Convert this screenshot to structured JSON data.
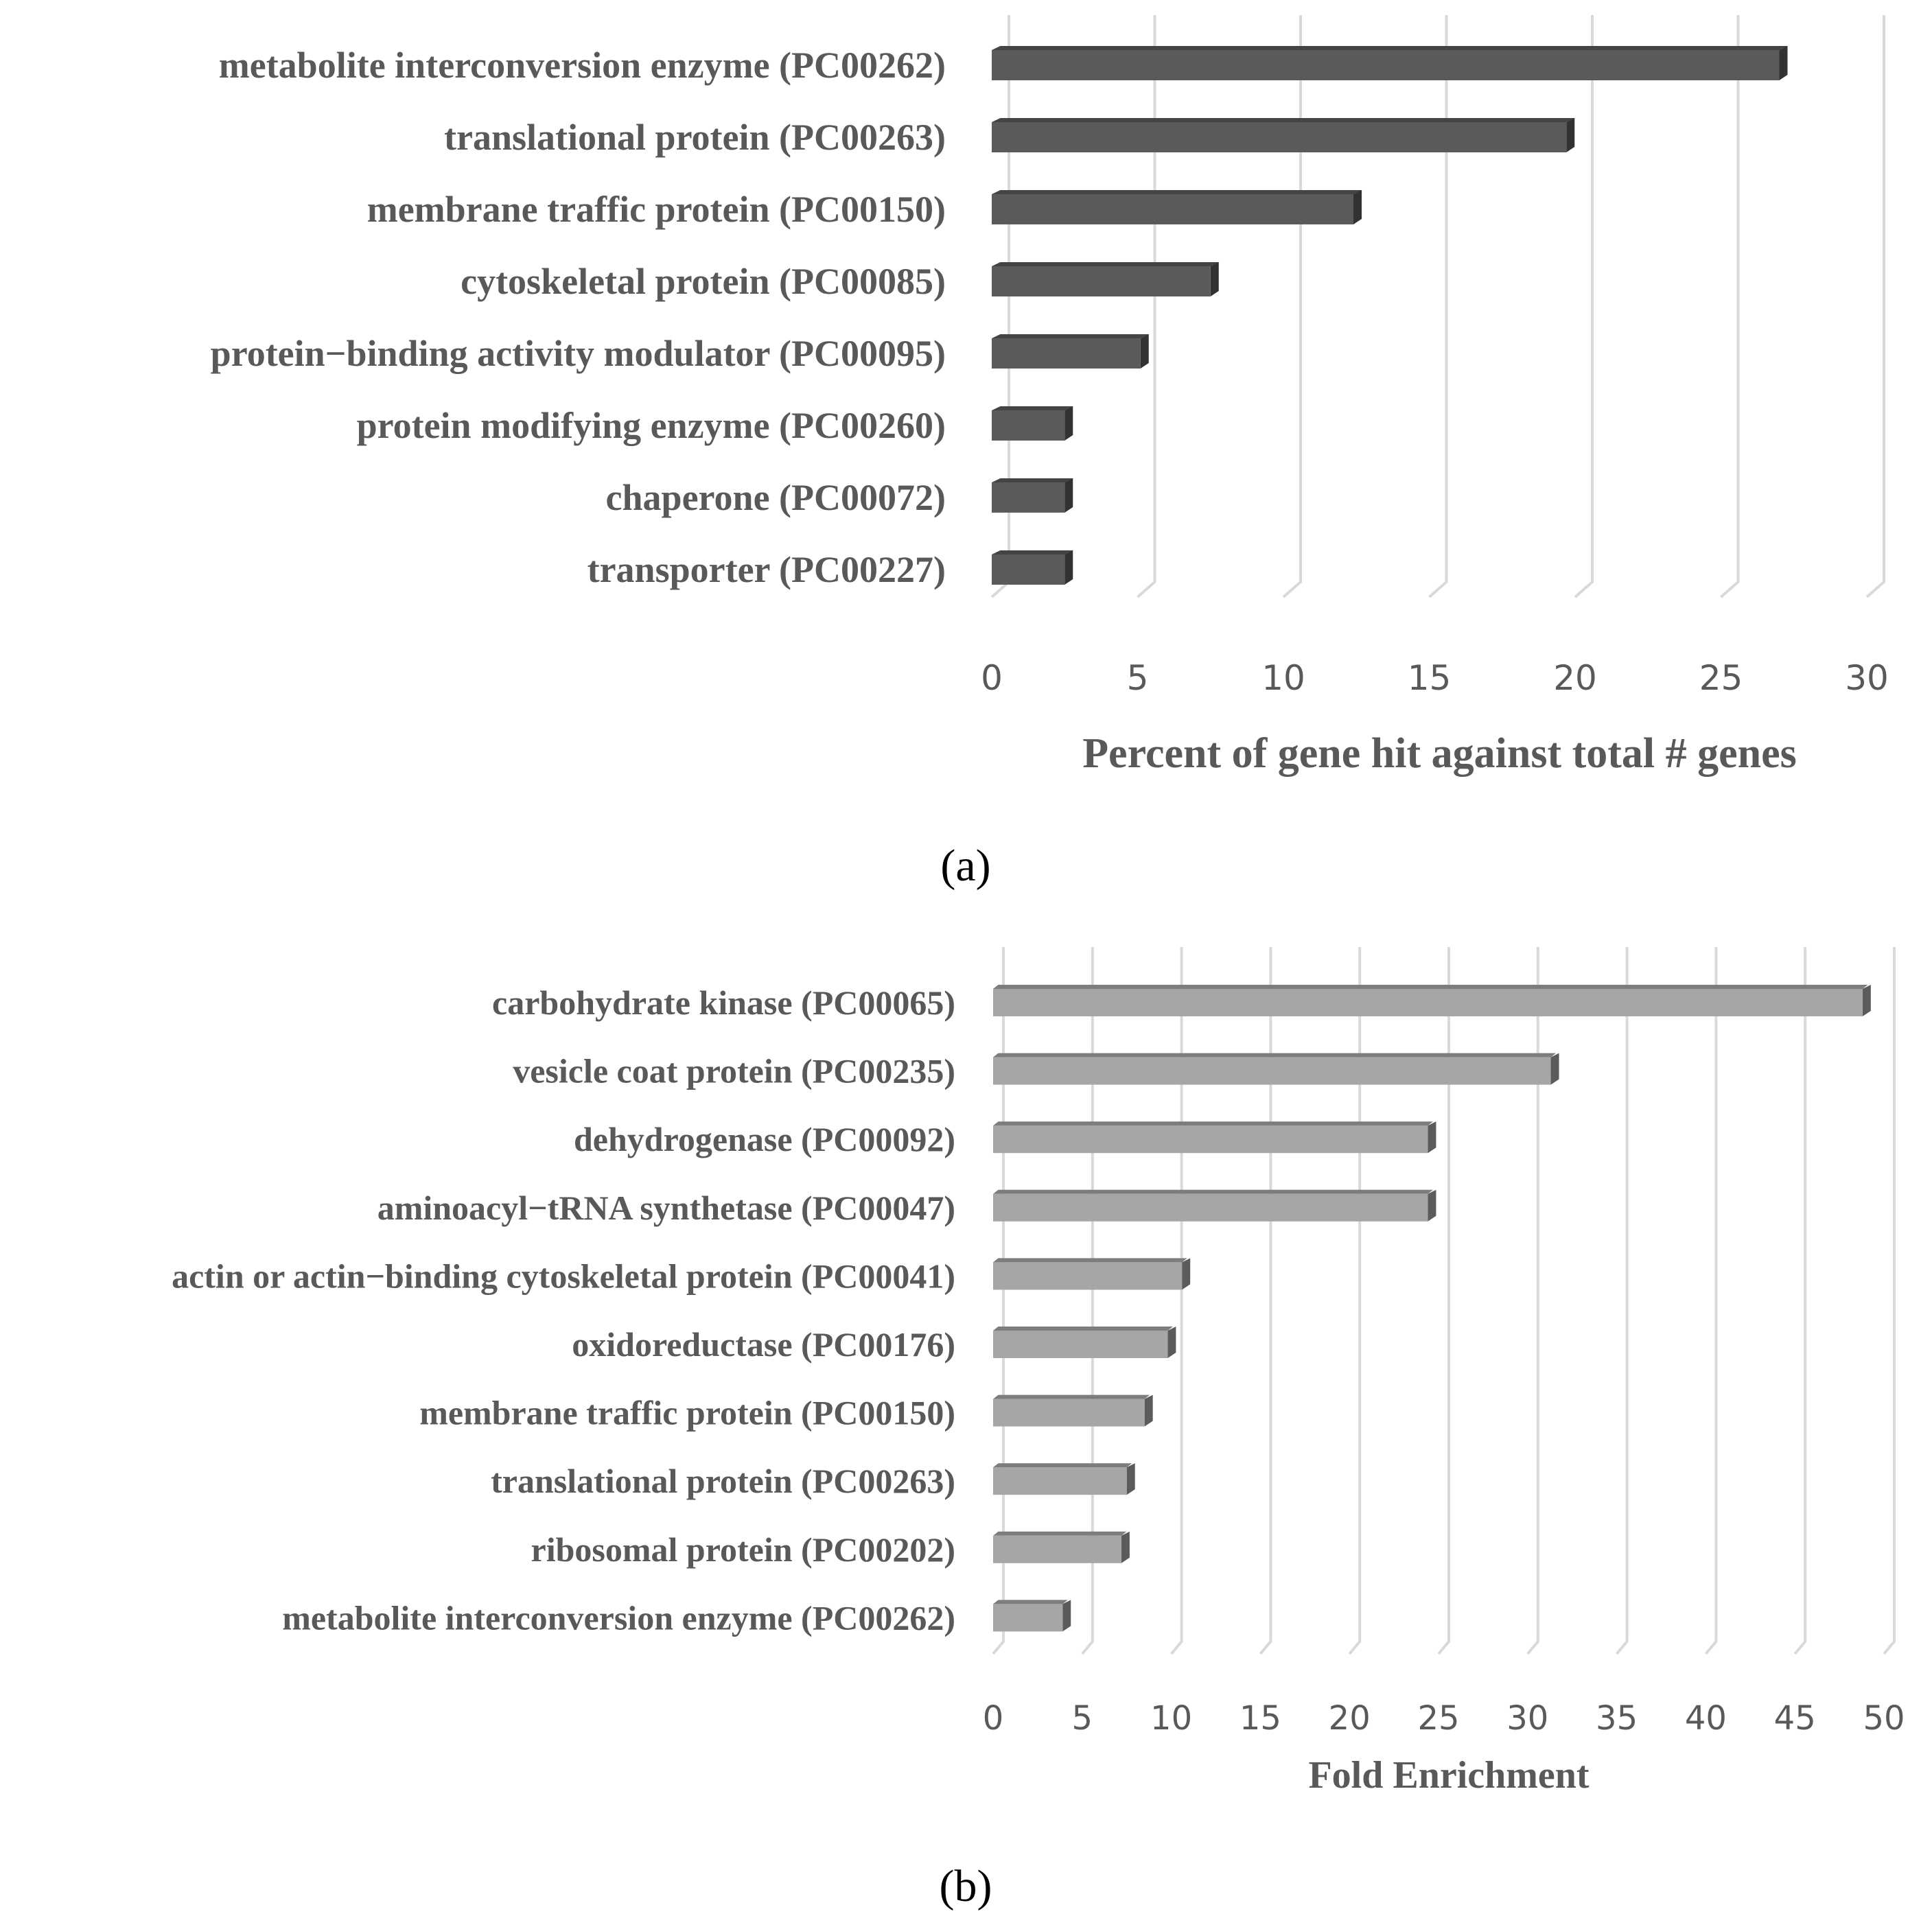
{
  "chart_data": [
    {
      "type": "bar",
      "orientation": "horizontal",
      "panel": "(a)",
      "categories": [
        "metabolite interconversion enzyme (PC00262)",
        "translational protein (PC00263)",
        "membrane traffic protein (PC00150)",
        "cytoskeletal protein (PC00085)",
        "protein−binding activity modulator (PC00095)",
        "protein modifying enzyme (PC00260)",
        "chaperone (PC00072)",
        "transporter (PC00227)"
      ],
      "values": [
        27,
        19.7,
        12.4,
        7.5,
        5.1,
        2.5,
        2.5,
        2.5
      ],
      "xlabel": "Percent of gene hit against total # genes",
      "xlim": [
        0,
        30
      ],
      "xticks": [
        "0",
        "5",
        "10",
        "15",
        "20",
        "25",
        "30"
      ],
      "grid": true,
      "color": "#5a5a5a"
    },
    {
      "type": "bar",
      "orientation": "horizontal",
      "panel": "(b)",
      "categories": [
        "carbohydrate kinase (PC00065)",
        "vesicle coat protein (PC00235)",
        "dehydrogenase (PC00092)",
        "aminoacyl−tRNA synthetase (PC00047)",
        "actin or actin−binding cytoskeletal protein (PC00041)",
        "oxidoreductase (PC00176)",
        "membrane traffic protein (PC00150)",
        "translational protein (PC00263)",
        "ribosomal protein (PC00202)",
        "metabolite interconversion enzyme (PC00262)"
      ],
      "values": [
        48.8,
        31.3,
        24.4,
        24.4,
        10.6,
        9.8,
        8.5,
        7.5,
        7.2,
        3.9
      ],
      "xlabel": "Fold Enrichment",
      "xlim": [
        0,
        50
      ],
      "xticks": [
        "0",
        "5",
        "10",
        "15",
        "20",
        "25",
        "30",
        "35",
        "40",
        "45",
        "50"
      ],
      "grid": true,
      "color": "#a6a6a6"
    }
  ]
}
